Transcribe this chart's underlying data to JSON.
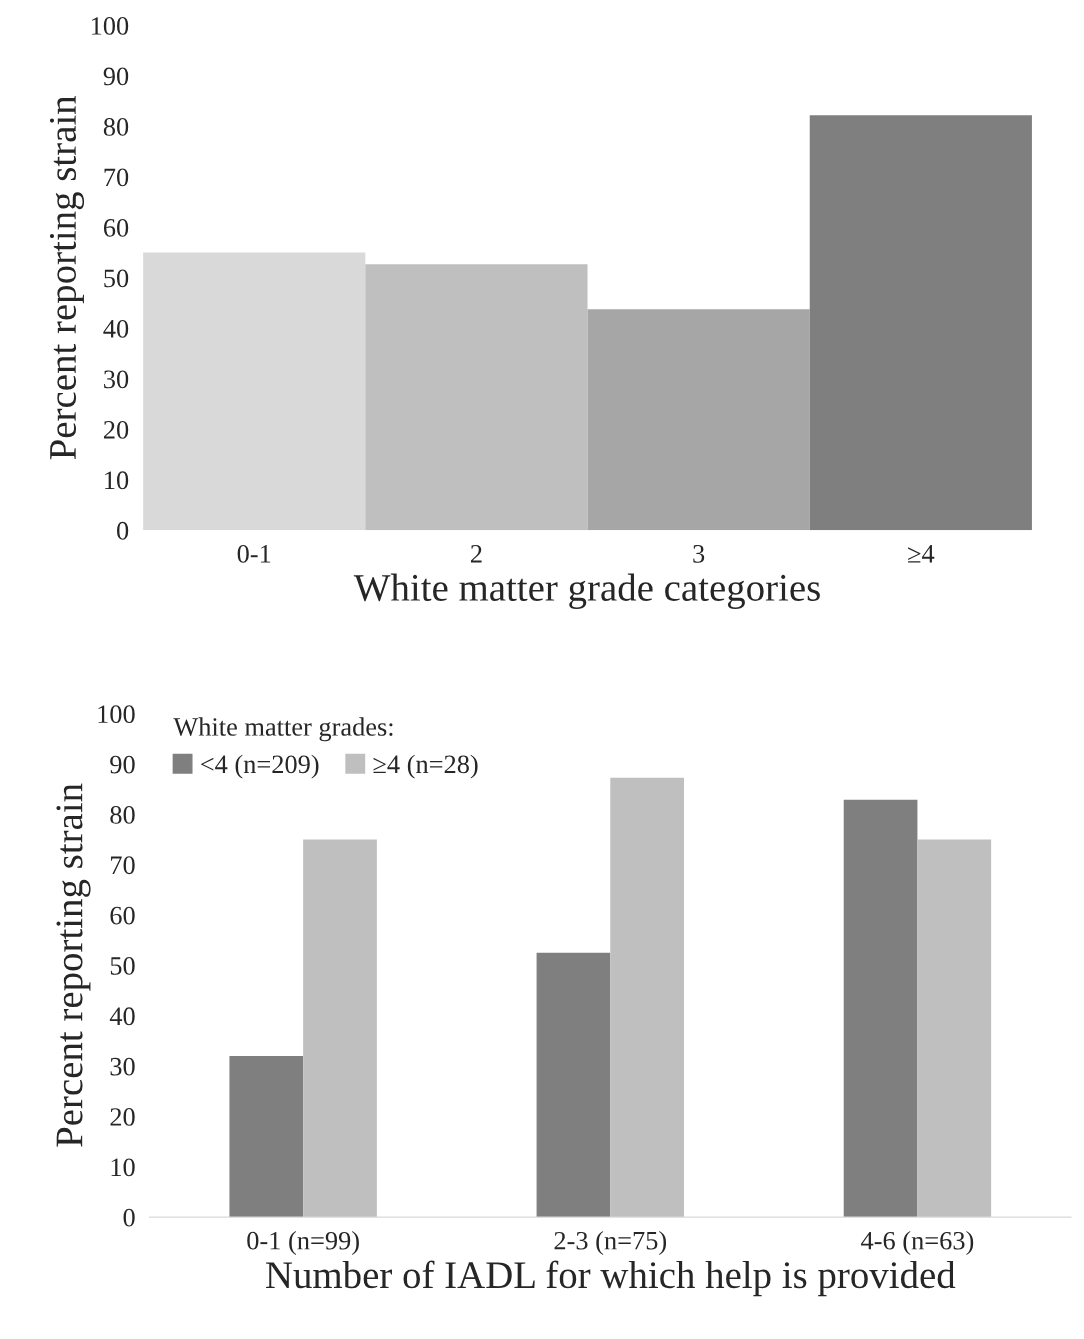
{
  "chart_data": [
    {
      "type": "bar",
      "xlabel": "White matter grade categories",
      "ylabel": "Percent reporting strain",
      "categories": [
        "0-1",
        "2",
        "3",
        "≥4"
      ],
      "values": [
        55.0,
        52.7,
        43.8,
        82.2
      ],
      "colors": [
        "#d9d9d9",
        "#bfbfbf",
        "#a6a6a6",
        "#7f7f7f"
      ],
      "ylim": [
        0,
        100
      ],
      "yticks": [
        0,
        10,
        20,
        30,
        40,
        50,
        60,
        70,
        80,
        90,
        100
      ],
      "grid": false,
      "legend": false
    },
    {
      "type": "bar",
      "xlabel": "Number of IADL for which help is provided",
      "ylabel": "Percent reporting strain",
      "legend_title": "White matter grades:",
      "categories": [
        "0-1 (n=99)",
        "2-3 (n=75)",
        "4-6 (n=63)"
      ],
      "series": [
        {
          "name": "<4 (n=209)",
          "color": "#7f7f7f",
          "values": [
            32.0,
            52.5,
            82.9
          ]
        },
        {
          "name": "≥4 (n=28)",
          "color": "#bfbfbf",
          "values": [
            75.0,
            87.3,
            75.0
          ]
        }
      ],
      "ylim": [
        0,
        100
      ],
      "yticks": [
        0,
        10,
        20,
        30,
        40,
        50,
        60,
        70,
        80,
        90,
        100
      ],
      "grid": false,
      "legend": "top left"
    }
  ]
}
